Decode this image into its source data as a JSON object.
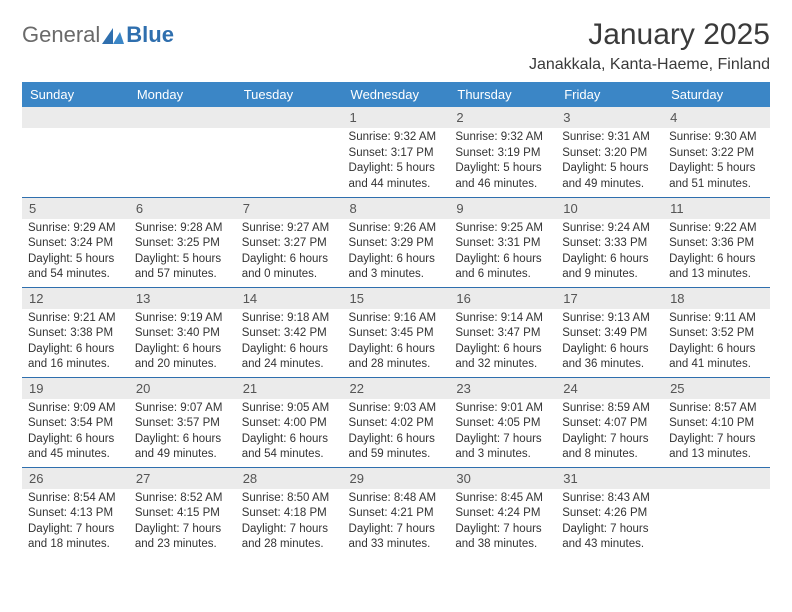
{
  "logo": {
    "text1": "General",
    "text2": "Blue"
  },
  "title": "January 2025",
  "location": "Janakkala, Kanta-Haeme, Finland",
  "colors": {
    "header_bg": "#3b86c6",
    "header_text": "#ffffff",
    "daynum_bg": "#ebebeb",
    "row_divider": "#2f6fae",
    "logo_gray": "#6a6a6a",
    "logo_blue": "#2f6fae",
    "text": "#333333",
    "page_bg": "#ffffff"
  },
  "weekdays": [
    "Sunday",
    "Monday",
    "Tuesday",
    "Wednesday",
    "Thursday",
    "Friday",
    "Saturday"
  ],
  "weeks": [
    [
      null,
      null,
      null,
      {
        "n": "1",
        "sunrise": "9:32 AM",
        "sunset": "3:17 PM",
        "day_h": "5",
        "day_m": "44"
      },
      {
        "n": "2",
        "sunrise": "9:32 AM",
        "sunset": "3:19 PM",
        "day_h": "5",
        "day_m": "46"
      },
      {
        "n": "3",
        "sunrise": "9:31 AM",
        "sunset": "3:20 PM",
        "day_h": "5",
        "day_m": "49"
      },
      {
        "n": "4",
        "sunrise": "9:30 AM",
        "sunset": "3:22 PM",
        "day_h": "5",
        "day_m": "51"
      }
    ],
    [
      {
        "n": "5",
        "sunrise": "9:29 AM",
        "sunset": "3:24 PM",
        "day_h": "5",
        "day_m": "54"
      },
      {
        "n": "6",
        "sunrise": "9:28 AM",
        "sunset": "3:25 PM",
        "day_h": "5",
        "day_m": "57"
      },
      {
        "n": "7",
        "sunrise": "9:27 AM",
        "sunset": "3:27 PM",
        "day_h": "6",
        "day_m": "0"
      },
      {
        "n": "8",
        "sunrise": "9:26 AM",
        "sunset": "3:29 PM",
        "day_h": "6",
        "day_m": "3"
      },
      {
        "n": "9",
        "sunrise": "9:25 AM",
        "sunset": "3:31 PM",
        "day_h": "6",
        "day_m": "6"
      },
      {
        "n": "10",
        "sunrise": "9:24 AM",
        "sunset": "3:33 PM",
        "day_h": "6",
        "day_m": "9"
      },
      {
        "n": "11",
        "sunrise": "9:22 AM",
        "sunset": "3:36 PM",
        "day_h": "6",
        "day_m": "13"
      }
    ],
    [
      {
        "n": "12",
        "sunrise": "9:21 AM",
        "sunset": "3:38 PM",
        "day_h": "6",
        "day_m": "16"
      },
      {
        "n": "13",
        "sunrise": "9:19 AM",
        "sunset": "3:40 PM",
        "day_h": "6",
        "day_m": "20"
      },
      {
        "n": "14",
        "sunrise": "9:18 AM",
        "sunset": "3:42 PM",
        "day_h": "6",
        "day_m": "24"
      },
      {
        "n": "15",
        "sunrise": "9:16 AM",
        "sunset": "3:45 PM",
        "day_h": "6",
        "day_m": "28"
      },
      {
        "n": "16",
        "sunrise": "9:14 AM",
        "sunset": "3:47 PM",
        "day_h": "6",
        "day_m": "32"
      },
      {
        "n": "17",
        "sunrise": "9:13 AM",
        "sunset": "3:49 PM",
        "day_h": "6",
        "day_m": "36"
      },
      {
        "n": "18",
        "sunrise": "9:11 AM",
        "sunset": "3:52 PM",
        "day_h": "6",
        "day_m": "41"
      }
    ],
    [
      {
        "n": "19",
        "sunrise": "9:09 AM",
        "sunset": "3:54 PM",
        "day_h": "6",
        "day_m": "45"
      },
      {
        "n": "20",
        "sunrise": "9:07 AM",
        "sunset": "3:57 PM",
        "day_h": "6",
        "day_m": "49"
      },
      {
        "n": "21",
        "sunrise": "9:05 AM",
        "sunset": "4:00 PM",
        "day_h": "6",
        "day_m": "54"
      },
      {
        "n": "22",
        "sunrise": "9:03 AM",
        "sunset": "4:02 PM",
        "day_h": "6",
        "day_m": "59"
      },
      {
        "n": "23",
        "sunrise": "9:01 AM",
        "sunset": "4:05 PM",
        "day_h": "7",
        "day_m": "3"
      },
      {
        "n": "24",
        "sunrise": "8:59 AM",
        "sunset": "4:07 PM",
        "day_h": "7",
        "day_m": "8"
      },
      {
        "n": "25",
        "sunrise": "8:57 AM",
        "sunset": "4:10 PM",
        "day_h": "7",
        "day_m": "13"
      }
    ],
    [
      {
        "n": "26",
        "sunrise": "8:54 AM",
        "sunset": "4:13 PM",
        "day_h": "7",
        "day_m": "18"
      },
      {
        "n": "27",
        "sunrise": "8:52 AM",
        "sunset": "4:15 PM",
        "day_h": "7",
        "day_m": "23"
      },
      {
        "n": "28",
        "sunrise": "8:50 AM",
        "sunset": "4:18 PM",
        "day_h": "7",
        "day_m": "28"
      },
      {
        "n": "29",
        "sunrise": "8:48 AM",
        "sunset": "4:21 PM",
        "day_h": "7",
        "day_m": "33"
      },
      {
        "n": "30",
        "sunrise": "8:45 AM",
        "sunset": "4:24 PM",
        "day_h": "7",
        "day_m": "38"
      },
      {
        "n": "31",
        "sunrise": "8:43 AM",
        "sunset": "4:26 PM",
        "day_h": "7",
        "day_m": "43"
      },
      null
    ]
  ],
  "labels": {
    "sunrise": "Sunrise:",
    "sunset": "Sunset:",
    "daylight_prefix": "Daylight:",
    "hours_word": "hours",
    "and_word": "and",
    "minutes_word": "minutes."
  }
}
